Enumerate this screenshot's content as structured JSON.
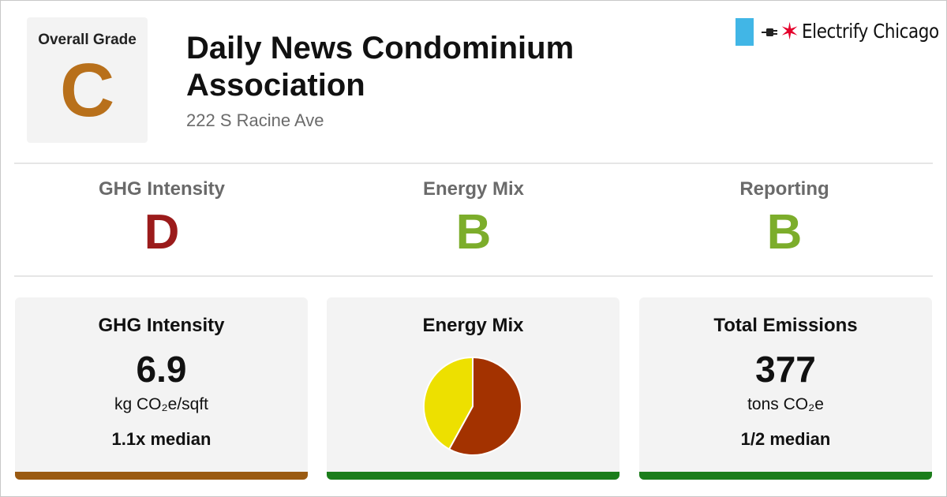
{
  "overall": {
    "label": "Overall Grade",
    "grade": "C",
    "color": "#b8701b"
  },
  "building": {
    "name": "Daily News Condominium Association",
    "address": "222 S Racine Ave"
  },
  "logo": {
    "text": "Electrify Chicago",
    "icons": [
      "chicago-flag-icon",
      "plug-icon",
      "red-star-icon"
    ]
  },
  "sub_grades": [
    {
      "title": "GHG Intensity",
      "grade": "D",
      "color": "#9b1b1b"
    },
    {
      "title": "Energy Mix",
      "grade": "B",
      "color": "#7cad2b"
    },
    {
      "title": "Reporting",
      "grade": "B",
      "color": "#7cad2b"
    }
  ],
  "cards": {
    "ghg": {
      "title": "GHG Intensity",
      "value": "6.9",
      "unit": "kg CO₂e/sqft",
      "median": "1.1x median",
      "bar_color": "#9a5a12"
    },
    "mix": {
      "title": "Energy Mix",
      "bar_color": "#1b7d1b"
    },
    "total": {
      "title": "Total Emissions",
      "value": "377",
      "unit": "tons CO₂e",
      "median": "1/2 median",
      "bar_color": "#1b7d1b"
    }
  },
  "chart_data": {
    "type": "pie",
    "title": "",
    "slices": [
      {
        "value": 58,
        "color": "#a33200"
      },
      {
        "value": 42,
        "color": "#ede000"
      }
    ]
  }
}
